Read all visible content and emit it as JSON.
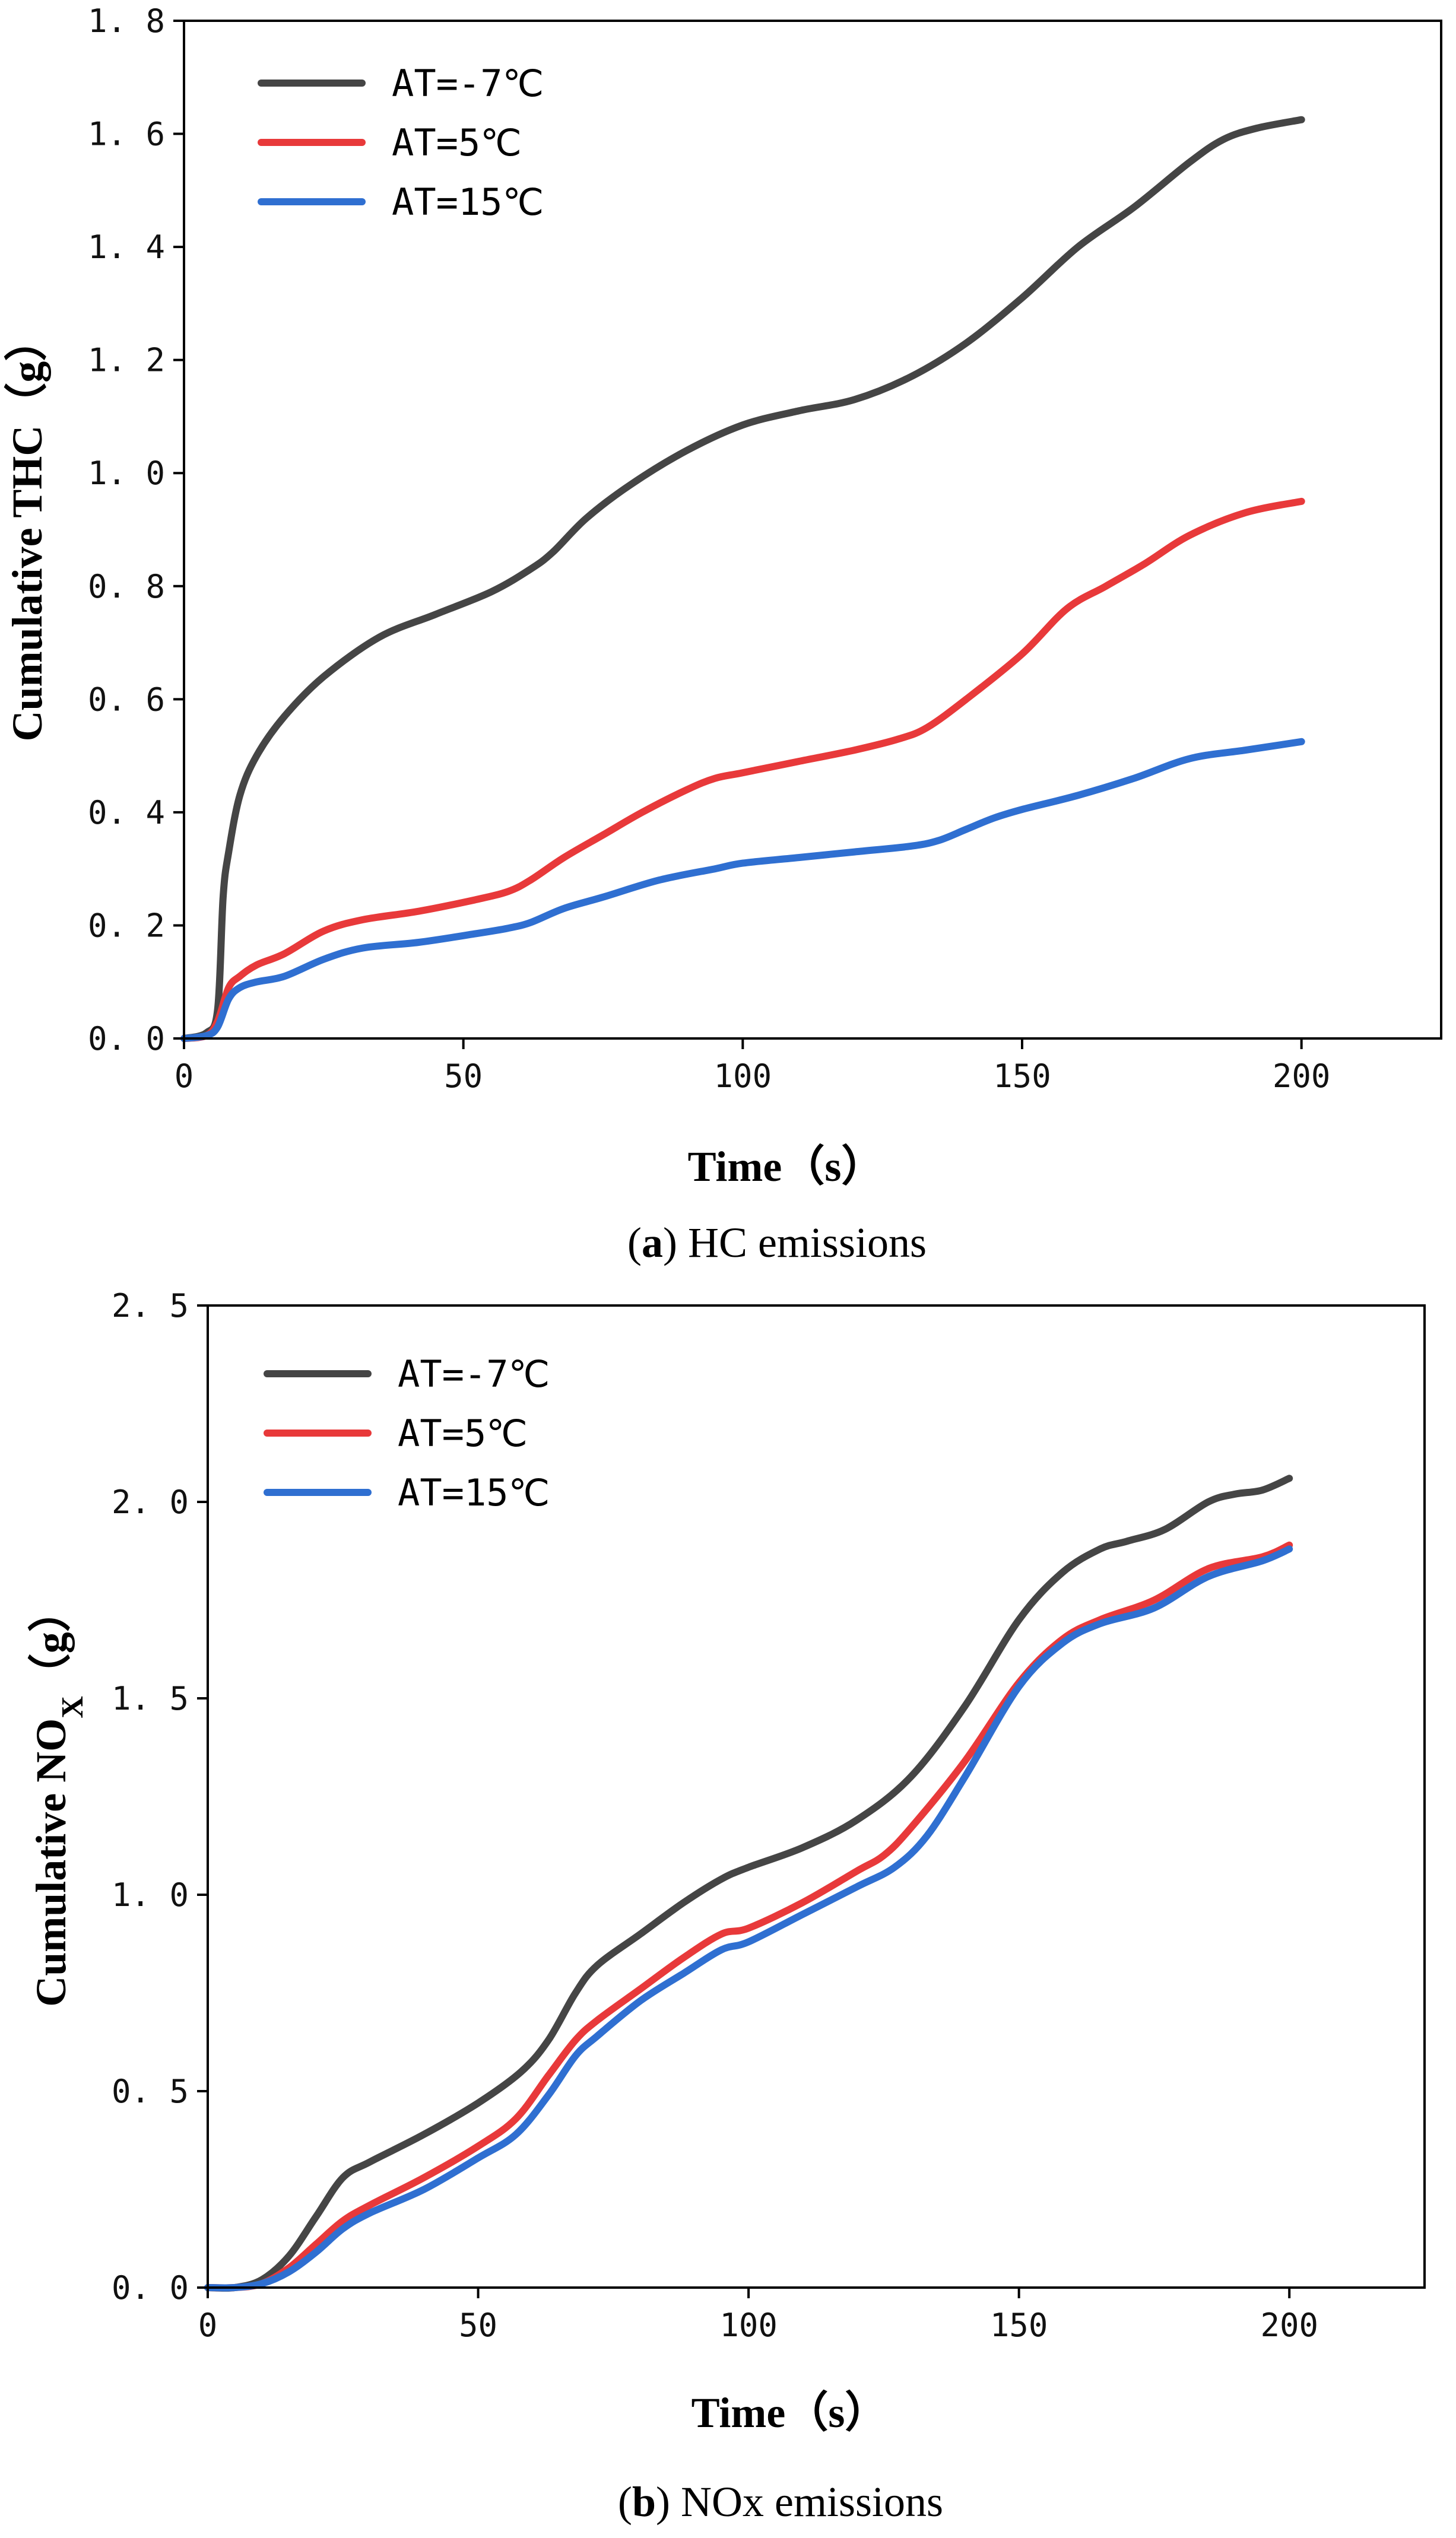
{
  "chart_data": [
    {
      "type": "line",
      "panel": "a",
      "caption_letter": "a",
      "caption_text": "HC emissions",
      "xlabel": "Time（s）",
      "ylabel": "Cumulative THC（g）",
      "xlim": [
        0,
        225
      ],
      "ylim": [
        0,
        1.8
      ],
      "xticks": [
        0,
        50,
        100,
        150,
        200
      ],
      "xtick_labels": [
        "0",
        "50",
        "100",
        "150",
        "200"
      ],
      "yticks": [
        0,
        0.2,
        0.4,
        0.6,
        0.8,
        1.0,
        1.2,
        1.4,
        1.6,
        1.8
      ],
      "ytick_labels": [
        "0. 0",
        "0. 2",
        "0. 4",
        "0. 6",
        "0. 8",
        "1. 0",
        "1. 2",
        "1. 4",
        "1. 6",
        "1. 8"
      ],
      "legend_position": "top-left",
      "grid": false,
      "series": [
        {
          "name": "AT=-7℃",
          "color": "#454545",
          "x": [
            0,
            4,
            6,
            7,
            8,
            10,
            13,
            18,
            25,
            35,
            45,
            55,
            62,
            66,
            72,
            80,
            90,
            100,
            110,
            120,
            130,
            140,
            150,
            160,
            170,
            180,
            186,
            192,
            200
          ],
          "y": [
            0,
            0.01,
            0.05,
            0.25,
            0.33,
            0.43,
            0.5,
            0.57,
            0.64,
            0.71,
            0.75,
            0.79,
            0.83,
            0.86,
            0.92,
            0.98,
            1.04,
            1.085,
            1.11,
            1.13,
            1.17,
            1.23,
            1.31,
            1.4,
            1.47,
            1.55,
            1.59,
            1.61,
            1.625
          ]
        },
        {
          "name": "AT=5℃",
          "color": "#e8393a",
          "x": [
            0,
            4,
            6,
            8,
            10,
            13,
            18,
            25,
            32,
            42,
            52,
            58,
            62,
            68,
            75,
            82,
            90,
            95,
            100,
            110,
            120,
            128,
            133,
            140,
            150,
            158,
            165,
            172,
            180,
            190,
            200
          ],
          "y": [
            0,
            0.005,
            0.03,
            0.09,
            0.11,
            0.13,
            0.15,
            0.19,
            0.21,
            0.225,
            0.245,
            0.26,
            0.28,
            0.32,
            0.36,
            0.4,
            0.44,
            0.46,
            0.47,
            0.49,
            0.51,
            0.53,
            0.55,
            0.6,
            0.68,
            0.76,
            0.8,
            0.84,
            0.89,
            0.93,
            0.95
          ]
        },
        {
          "name": "AT=15℃",
          "color": "#2f6fd1",
          "x": [
            0,
            4,
            6,
            8,
            10,
            13,
            18,
            25,
            32,
            42,
            52,
            58,
            62,
            68,
            75,
            85,
            95,
            100,
            110,
            120,
            130,
            135,
            140,
            145,
            150,
            160,
            170,
            180,
            190,
            200
          ],
          "y": [
            0,
            0.005,
            0.02,
            0.07,
            0.09,
            0.1,
            0.11,
            0.14,
            0.16,
            0.17,
            0.185,
            0.195,
            0.205,
            0.23,
            0.25,
            0.28,
            0.3,
            0.31,
            0.32,
            0.33,
            0.34,
            0.35,
            0.37,
            0.39,
            0.405,
            0.43,
            0.46,
            0.495,
            0.51,
            0.525
          ]
        }
      ]
    },
    {
      "type": "line",
      "panel": "b",
      "caption_letter": "b",
      "caption_text": "NOx emissions",
      "xlabel": "Time（s）",
      "ylabel": "Cumulative NOx（g）",
      "ylabel_main": "Cumulative NO",
      "ylabel_sub": "X",
      "ylabel_end": "（g）",
      "xlim": [
        0,
        225
      ],
      "ylim": [
        0,
        2.5
      ],
      "xticks": [
        0,
        50,
        100,
        150,
        200
      ],
      "xtick_labels": [
        "0",
        "50",
        "100",
        "150",
        "200"
      ],
      "yticks": [
        0,
        0.5,
        1.0,
        1.5,
        2.0,
        2.5
      ],
      "ytick_labels": [
        "0. 0",
        "0. 5",
        "1. 0",
        "1. 5",
        "2. 0",
        "2. 5"
      ],
      "legend_position": "top-left",
      "grid": false,
      "series": [
        {
          "name": "AT=-7℃",
          "color": "#454545",
          "x": [
            0,
            5,
            10,
            15,
            20,
            25,
            30,
            40,
            50,
            58,
            63,
            68,
            72,
            80,
            88,
            95,
            100,
            110,
            120,
            130,
            140,
            150,
            158,
            165,
            170,
            177,
            185,
            190,
            195,
            200
          ],
          "y": [
            0,
            0,
            0.02,
            0.08,
            0.18,
            0.28,
            0.32,
            0.39,
            0.47,
            0.55,
            0.63,
            0.75,
            0.82,
            0.9,
            0.98,
            1.04,
            1.07,
            1.12,
            1.19,
            1.3,
            1.48,
            1.7,
            1.82,
            1.88,
            1.9,
            1.93,
            2.0,
            2.02,
            2.03,
            2.06
          ]
        },
        {
          "name": "AT=5℃",
          "color": "#e8393a",
          "x": [
            0,
            5,
            10,
            15,
            20,
            25,
            30,
            40,
            50,
            57,
            63,
            68,
            72,
            80,
            88,
            95,
            100,
            110,
            120,
            125,
            130,
            140,
            150,
            158,
            165,
            175,
            185,
            195,
            200
          ],
          "y": [
            0,
            0,
            0.01,
            0.05,
            0.11,
            0.17,
            0.21,
            0.28,
            0.36,
            0.43,
            0.54,
            0.63,
            0.68,
            0.76,
            0.84,
            0.9,
            0.915,
            0.98,
            1.06,
            1.1,
            1.17,
            1.34,
            1.54,
            1.65,
            1.7,
            1.75,
            1.83,
            1.86,
            1.89
          ]
        },
        {
          "name": "AT=15℃",
          "color": "#2f6fd1",
          "x": [
            0,
            5,
            10,
            15,
            20,
            25,
            30,
            40,
            50,
            57,
            63,
            68,
            72,
            80,
            88,
            95,
            100,
            110,
            120,
            127,
            133,
            140,
            150,
            158,
            165,
            175,
            185,
            195,
            200
          ],
          "y": [
            0,
            0,
            0.01,
            0.04,
            0.09,
            0.15,
            0.19,
            0.25,
            0.33,
            0.39,
            0.49,
            0.59,
            0.64,
            0.73,
            0.8,
            0.86,
            0.88,
            0.95,
            1.02,
            1.07,
            1.15,
            1.3,
            1.53,
            1.64,
            1.69,
            1.73,
            1.81,
            1.85,
            1.88
          ]
        }
      ]
    }
  ]
}
